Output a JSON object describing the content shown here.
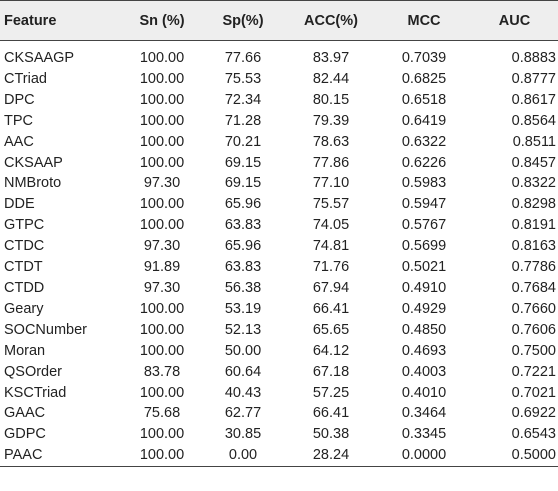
{
  "table": {
    "headers": [
      "Feature",
      "Sn (%)",
      "Sp(%)",
      "ACC(%)",
      "MCC",
      "AUC"
    ],
    "rows": [
      [
        "CKSAAGP",
        "100.00",
        "77.66",
        "83.97",
        "0.7039",
        "0.8883"
      ],
      [
        "CTriad",
        "100.00",
        "75.53",
        "82.44",
        "0.6825",
        "0.8777"
      ],
      [
        "DPC",
        "100.00",
        "72.34",
        "80.15",
        "0.6518",
        "0.8617"
      ],
      [
        "TPC",
        "100.00",
        "71.28",
        "79.39",
        "0.6419",
        "0.8564"
      ],
      [
        "AAC",
        "100.00",
        "70.21",
        "78.63",
        "0.6322",
        "0.8511"
      ],
      [
        "CKSAAP",
        "100.00",
        "69.15",
        "77.86",
        "0.6226",
        "0.8457"
      ],
      [
        "NMBroto",
        "97.30",
        "69.15",
        "77.10",
        "0.5983",
        "0.8322"
      ],
      [
        "DDE",
        "100.00",
        "65.96",
        "75.57",
        "0.5947",
        "0.8298"
      ],
      [
        "GTPC",
        "100.00",
        "63.83",
        "74.05",
        "0.5767",
        "0.8191"
      ],
      [
        "CTDC",
        "97.30",
        "65.96",
        "74.81",
        "0.5699",
        "0.8163"
      ],
      [
        "CTDT",
        "91.89",
        "63.83",
        "71.76",
        "0.5021",
        "0.7786"
      ],
      [
        "CTDD",
        "97.30",
        "56.38",
        "67.94",
        "0.4910",
        "0.7684"
      ],
      [
        "Geary",
        "100.00",
        "53.19",
        "66.41",
        "0.4929",
        "0.7660"
      ],
      [
        "SOCNumber",
        "100.00",
        "52.13",
        "65.65",
        "0.4850",
        "0.7606"
      ],
      [
        "Moran",
        "100.00",
        "50.00",
        "64.12",
        "0.4693",
        "0.7500"
      ],
      [
        "QSOrder",
        "83.78",
        "60.64",
        "67.18",
        "0.4003",
        "0.7221"
      ],
      [
        "KSCTriad",
        "100.00",
        "40.43",
        "57.25",
        "0.4010",
        "0.7021"
      ],
      [
        "GAAC",
        "75.68",
        "62.77",
        "66.41",
        "0.3464",
        "0.6922"
      ],
      [
        "GDPC",
        "100.00",
        "30.85",
        "50.38",
        "0.3345",
        "0.6543"
      ],
      [
        "PAAC",
        "100.00",
        "0.00",
        "28.24",
        "0.0000",
        "0.5000"
      ]
    ]
  }
}
